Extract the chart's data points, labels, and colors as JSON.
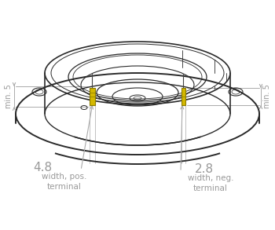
{
  "bg_color": "#ffffff",
  "fig_width": 3.5,
  "fig_height": 2.93,
  "dpi": 100,
  "line_color": "#2a2a2a",
  "line_color2": "#444444",
  "dim_color": "#aaaaaa",
  "terminal_color": "#d4b800",
  "terminal_edge": "#8a7a00",
  "annotation_color": "#999999",
  "dim_left_label": "min. 5",
  "dim_right_label": "min. 5",
  "dim_pos_width": "4.8",
  "dim_neg_width": "2.8",
  "dim_pos_text1": "width, pos.",
  "dim_pos_text2": "terminal",
  "dim_neg_text1": "width, neg.",
  "dim_neg_text2": "terminal"
}
